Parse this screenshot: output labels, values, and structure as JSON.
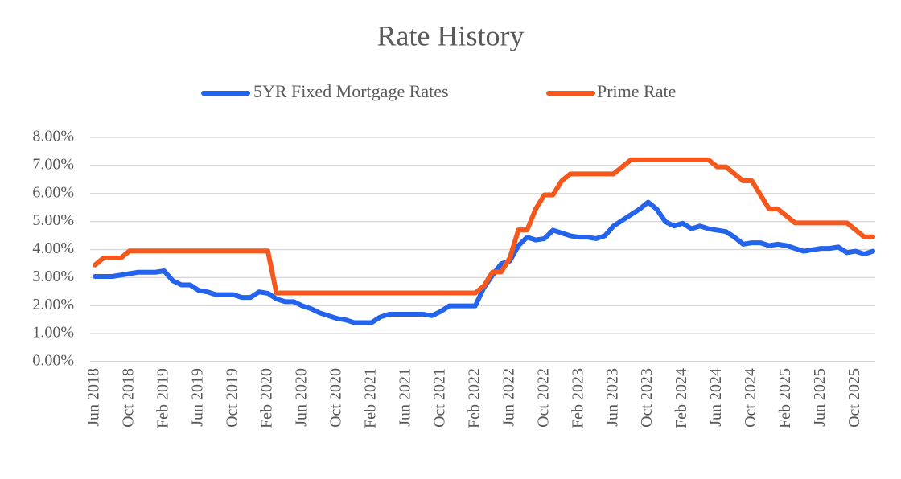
{
  "chart_data": {
    "type": "line",
    "title": "Rate History",
    "categories": [
      "Jun 2018",
      null,
      null,
      null,
      "Oct 2018",
      null,
      null,
      null,
      "Feb 2019",
      null,
      null,
      null,
      "Jun 2019",
      null,
      null,
      null,
      "Oct 2019",
      null,
      null,
      null,
      "Feb 2020",
      null,
      null,
      null,
      "Jun 2020",
      null,
      null,
      null,
      "Oct 2020",
      null,
      null,
      null,
      "Feb 2021",
      null,
      null,
      null,
      "Jun 2021",
      null,
      null,
      null,
      "Oct 2021",
      null,
      null,
      null,
      "Feb 2022",
      null,
      null,
      null,
      "Jun 2022",
      null,
      null,
      null,
      "Oct 2022",
      null,
      null,
      null,
      "Feb 2023",
      null,
      null,
      null,
      "Jun 2023",
      null,
      null,
      null,
      "Oct 2023",
      null,
      null,
      null,
      "Feb 2024",
      null,
      null,
      null,
      "Jun 2024",
      null,
      null,
      null,
      "Oct 2024",
      null,
      null,
      null,
      "Feb 2025",
      null,
      null,
      null,
      "Jun 2025",
      null,
      null,
      null,
      "Oct 2025",
      null,
      null
    ],
    "series": [
      {
        "name": "5YR Fixed Mortgage Rates",
        "color": "#2463eb",
        "values": [
          3.04,
          3.04,
          3.04,
          3.09,
          3.14,
          3.19,
          3.19,
          3.19,
          3.24,
          2.89,
          2.74,
          2.74,
          2.54,
          2.49,
          2.39,
          2.39,
          2.39,
          2.29,
          2.29,
          2.49,
          2.44,
          2.24,
          2.14,
          2.14,
          1.99,
          1.89,
          1.74,
          1.64,
          1.54,
          1.49,
          1.39,
          1.39,
          1.39,
          1.59,
          1.69,
          1.69,
          1.69,
          1.69,
          1.69,
          1.64,
          1.79,
          1.99,
          1.99,
          1.99,
          1.99,
          2.64,
          3.09,
          3.49,
          3.59,
          4.14,
          4.44,
          4.34,
          4.39,
          4.69,
          4.59,
          4.49,
          4.44,
          4.44,
          4.39,
          4.49,
          4.84,
          5.04,
          5.24,
          5.44,
          5.69,
          5.44,
          4.99,
          4.84,
          4.94,
          4.74,
          4.84,
          4.74,
          4.69,
          4.64,
          4.44,
          4.19,
          4.24,
          4.24,
          4.14,
          4.19,
          4.14,
          4.04,
          3.94,
          3.99,
          4.04,
          4.04,
          4.09,
          3.89,
          3.94,
          3.84,
          3.94
        ]
      },
      {
        "name": "Prime Rate",
        "color": "#f4581c",
        "values": [
          3.45,
          3.7,
          3.7,
          3.7,
          3.95,
          3.95,
          3.95,
          3.95,
          3.95,
          3.95,
          3.95,
          3.95,
          3.95,
          3.95,
          3.95,
          3.95,
          3.95,
          3.95,
          3.95,
          3.95,
          3.95,
          2.45,
          2.45,
          2.45,
          2.45,
          2.45,
          2.45,
          2.45,
          2.45,
          2.45,
          2.45,
          2.45,
          2.45,
          2.45,
          2.45,
          2.45,
          2.45,
          2.45,
          2.45,
          2.45,
          2.45,
          2.45,
          2.45,
          2.45,
          2.45,
          2.7,
          3.2,
          3.2,
          3.7,
          4.7,
          4.7,
          5.45,
          5.95,
          5.95,
          6.45,
          6.7,
          6.7,
          6.7,
          6.7,
          6.7,
          6.7,
          6.95,
          7.2,
          7.2,
          7.2,
          7.2,
          7.2,
          7.2,
          7.2,
          7.2,
          7.2,
          7.2,
          6.95,
          6.95,
          6.7,
          6.45,
          6.45,
          5.95,
          5.45,
          5.45,
          5.2,
          4.95,
          4.95,
          4.95,
          4.95,
          4.95,
          4.95,
          4.95,
          4.7,
          4.45,
          4.45
        ]
      }
    ],
    "ylim": [
      0,
      8
    ],
    "yticks": [
      {
        "value": 0,
        "label": "0.00%"
      },
      {
        "value": 1,
        "label": "1.00%"
      },
      {
        "value": 2,
        "label": "2.00%"
      },
      {
        "value": 3,
        "label": "3.00%"
      },
      {
        "value": 4,
        "label": "4.00%"
      },
      {
        "value": 5,
        "label": "5.00%"
      },
      {
        "value": 6,
        "label": "6.00%"
      },
      {
        "value": 7,
        "label": "7.00%"
      },
      {
        "value": 8,
        "label": "8.00%"
      }
    ],
    "grid": true,
    "legend": "top"
  }
}
